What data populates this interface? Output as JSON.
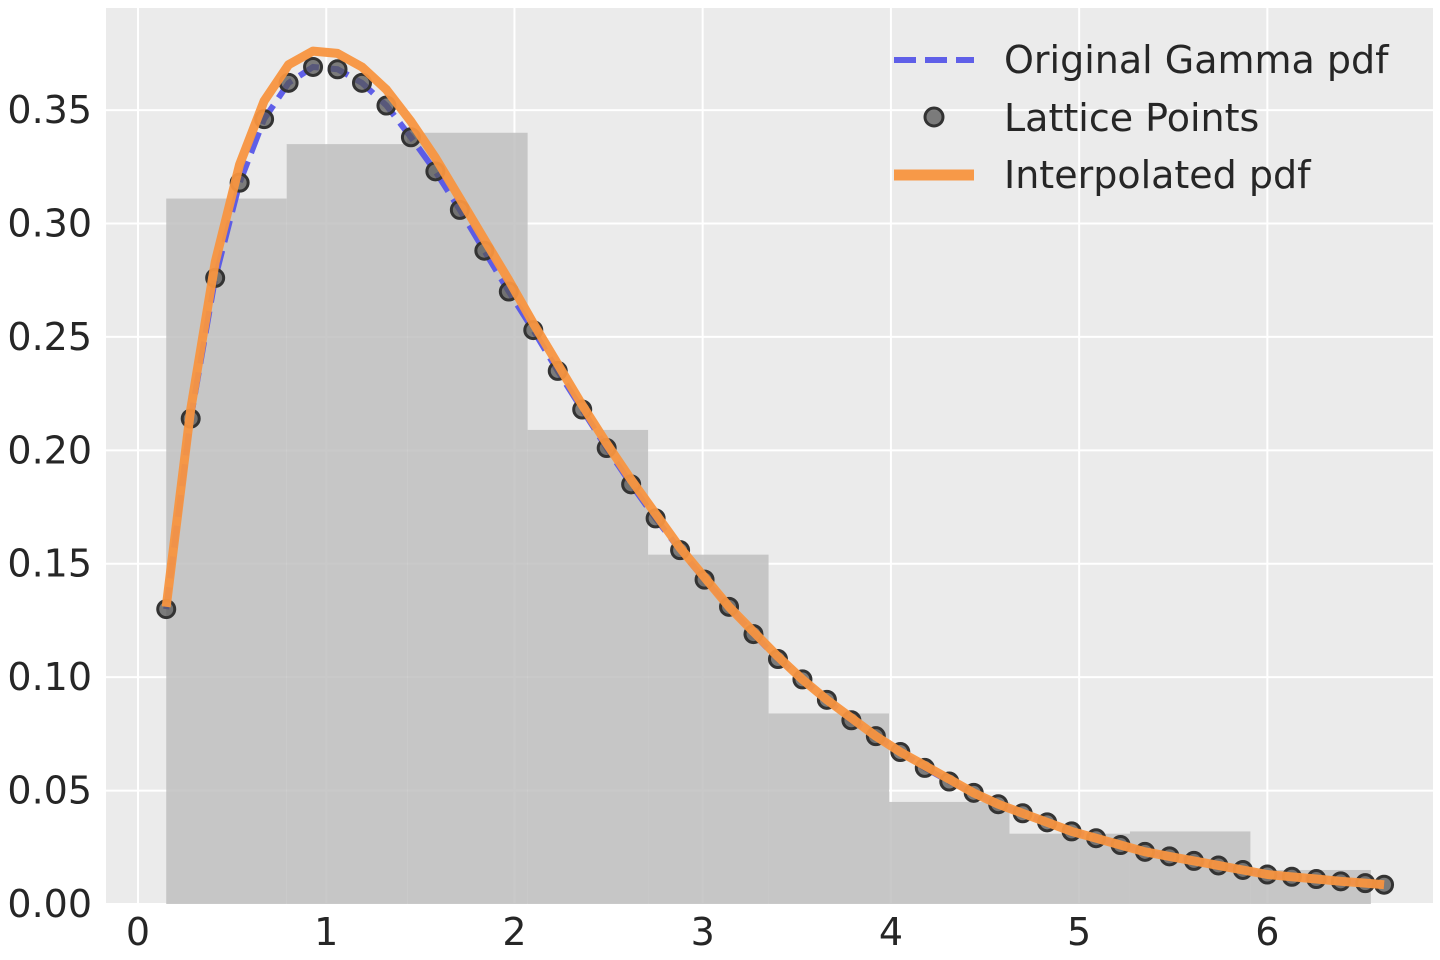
{
  "chart_data": {
    "type": "line",
    "title": "",
    "xlabel": "",
    "ylabel": "",
    "xlim": [
      -0.17,
      6.88
    ],
    "ylim": [
      0,
      0.395
    ],
    "grid": true,
    "legend_position": "top-right",
    "x_ticks": [
      0,
      1,
      2,
      3,
      4,
      5,
      6
    ],
    "x_tick_labels": [
      "0",
      "1",
      "2",
      "3",
      "4",
      "5",
      "6"
    ],
    "y_ticks": [
      0,
      0.05,
      0.1,
      0.15,
      0.2,
      0.25,
      0.3,
      0.35
    ],
    "y_tick_labels": [
      "0.00",
      "0.05",
      "0.10",
      "0.15",
      "0.20",
      "0.25",
      "0.30",
      "0.35"
    ],
    "histogram": {
      "bin_edges": [
        0.15,
        0.79,
        1.43,
        2.07,
        2.71,
        3.35,
        3.99,
        4.63,
        5.27,
        5.91,
        6.55
      ],
      "heights": [
        0.311,
        0.335,
        0.34,
        0.209,
        0.154,
        0.084,
        0.045,
        0.031,
        0.032,
        0.015
      ],
      "color": "#c0c0c0"
    },
    "series": [
      {
        "name": "Original Gamma pdf",
        "kind": "line",
        "style": "dashed",
        "color": "#5050e8",
        "x": [
          0.15,
          0.28,
          0.41,
          0.54,
          0.67,
          0.8,
          0.93,
          1.06,
          1.19,
          1.32,
          1.45,
          1.58,
          1.71,
          1.84,
          1.97,
          2.1,
          2.23,
          2.36,
          2.49,
          2.62,
          2.75,
          2.88,
          3.01,
          3.14,
          3.27,
          3.4,
          3.53,
          3.66,
          3.79,
          3.92,
          4.05,
          4.18,
          4.31,
          4.44,
          4.57,
          4.7,
          4.83,
          4.96,
          5.09,
          5.22,
          5.35,
          5.48,
          5.61,
          5.74,
          5.87,
          6.0,
          6.13,
          6.26,
          6.39,
          6.52,
          6.62
        ],
        "y": [
          0.13,
          0.214,
          0.276,
          0.318,
          0.346,
          0.362,
          0.369,
          0.368,
          0.362,
          0.352,
          0.338,
          0.323,
          0.306,
          0.288,
          0.27,
          0.253,
          0.235,
          0.218,
          0.201,
          0.185,
          0.17,
          0.156,
          0.143,
          0.131,
          0.119,
          0.108,
          0.099,
          0.09,
          0.081,
          0.074,
          0.067,
          0.06,
          0.054,
          0.049,
          0.044,
          0.04,
          0.036,
          0.032,
          0.029,
          0.026,
          0.023,
          0.021,
          0.019,
          0.017,
          0.015,
          0.013,
          0.012,
          0.011,
          0.01,
          0.0092,
          0.0085
        ]
      },
      {
        "name": "Lattice Points",
        "kind": "scatter",
        "color": "#555555",
        "x": [
          0.15,
          0.28,
          0.41,
          0.54,
          0.67,
          0.8,
          0.93,
          1.06,
          1.19,
          1.32,
          1.45,
          1.58,
          1.71,
          1.84,
          1.97,
          2.1,
          2.23,
          2.36,
          2.49,
          2.62,
          2.75,
          2.88,
          3.01,
          3.14,
          3.27,
          3.4,
          3.53,
          3.66,
          3.79,
          3.92,
          4.05,
          4.18,
          4.31,
          4.44,
          4.57,
          4.7,
          4.83,
          4.96,
          5.09,
          5.22,
          5.35,
          5.48,
          5.61,
          5.74,
          5.87,
          6.0,
          6.13,
          6.26,
          6.39,
          6.52,
          6.62
        ],
        "y": [
          0.13,
          0.214,
          0.276,
          0.318,
          0.346,
          0.362,
          0.369,
          0.368,
          0.362,
          0.352,
          0.338,
          0.323,
          0.306,
          0.288,
          0.27,
          0.253,
          0.235,
          0.218,
          0.201,
          0.185,
          0.17,
          0.156,
          0.143,
          0.131,
          0.119,
          0.108,
          0.099,
          0.09,
          0.081,
          0.074,
          0.067,
          0.06,
          0.054,
          0.049,
          0.044,
          0.04,
          0.036,
          0.032,
          0.029,
          0.026,
          0.023,
          0.021,
          0.019,
          0.017,
          0.015,
          0.013,
          0.012,
          0.011,
          0.01,
          0.0092,
          0.0085
        ]
      },
      {
        "name": "Interpolated pdf",
        "kind": "line",
        "style": "solid",
        "color": "#f89540",
        "x": [
          0.15,
          0.28,
          0.41,
          0.54,
          0.67,
          0.8,
          0.93,
          1.06,
          1.19,
          1.32,
          1.45,
          1.58,
          1.71,
          1.84,
          1.97,
          2.1,
          2.23,
          2.36,
          2.49,
          2.62,
          2.75,
          2.88,
          3.01,
          3.14,
          3.27,
          3.4,
          3.53,
          3.66,
          3.79,
          3.92,
          4.05,
          4.18,
          4.31,
          4.44,
          4.57,
          4.7,
          4.83,
          4.96,
          5.09,
          5.22,
          5.35,
          5.48,
          5.61,
          5.74,
          5.87,
          6.0,
          6.13,
          6.26,
          6.39,
          6.52,
          6.62
        ],
        "y": [
          0.131,
          0.218,
          0.283,
          0.326,
          0.354,
          0.37,
          0.376,
          0.375,
          0.369,
          0.359,
          0.345,
          0.329,
          0.311,
          0.293,
          0.275,
          0.256,
          0.238,
          0.22,
          0.203,
          0.187,
          0.172,
          0.157,
          0.144,
          0.131,
          0.12,
          0.109,
          0.099,
          0.09,
          0.082,
          0.074,
          0.067,
          0.061,
          0.055,
          0.049,
          0.044,
          0.04,
          0.036,
          0.032,
          0.029,
          0.026,
          0.023,
          0.021,
          0.019,
          0.017,
          0.015,
          0.013,
          0.012,
          0.011,
          0.01,
          0.0092,
          0.0085
        ]
      }
    ]
  },
  "colors": {
    "plot_background": "#ebebeb",
    "grid": "#ffffff",
    "text": "#262626"
  }
}
